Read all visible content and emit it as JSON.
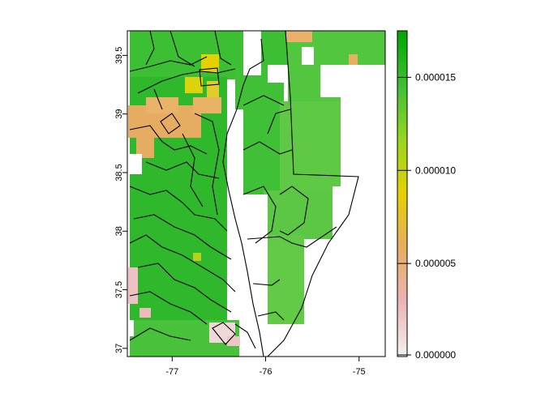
{
  "map": {
    "x_ticks": [
      "-77",
      "-76",
      "-75"
    ],
    "y_ticks": [
      "37",
      "37.5",
      "38",
      "38.5",
      "39",
      "39.5"
    ],
    "extent": {
      "lon": [
        -77.48,
        -74.72
      ],
      "lat": [
        36.93,
        39.71
      ]
    }
  },
  "legend": {
    "ticks": [
      "0.000000",
      "0.000005",
      "0.000010",
      "0.000015"
    ],
    "range": [
      0,
      1.75e-05
    ],
    "tick_values": [
      0,
      5e-06,
      1e-05,
      1.5e-05
    ],
    "colors": [
      "#f2f2f2",
      "#ebb4b4",
      "#e6ac61",
      "#e6d100",
      "#96d620",
      "#3dbf34",
      "#00a600"
    ]
  }
}
